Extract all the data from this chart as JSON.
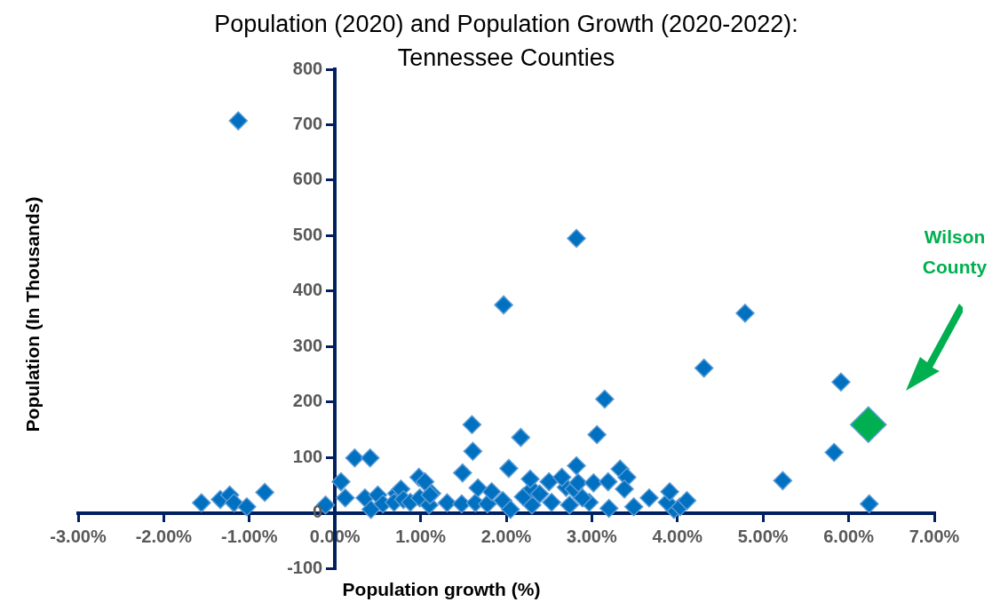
{
  "chart_data": {
    "type": "scatter",
    "title": "Population (2020) and Population Growth (2020-2022): Tennessee Counties",
    "xlabel": "Population growth (%)",
    "ylabel": "Population (In Thousands)",
    "xlim": [
      -3,
      7
    ],
    "xticks": [
      {
        "value": -3,
        "label": "-3.00%"
      },
      {
        "value": -2,
        "label": "-2.00%"
      },
      {
        "value": -1,
        "label": "-1.00%"
      },
      {
        "value": 0,
        "label": "0.00%"
      },
      {
        "value": 1,
        "label": "1.00%"
      },
      {
        "value": 2,
        "label": "2.00%"
      },
      {
        "value": 3,
        "label": "3.00%"
      },
      {
        "value": 4,
        "label": "4.00%"
      },
      {
        "value": 5,
        "label": "5.00%"
      },
      {
        "value": 6,
        "label": "6.00%"
      },
      {
        "value": 7,
        "label": "7.00%"
      }
    ],
    "ylim": [
      -100,
      800
    ],
    "yticks": [
      -100,
      0,
      100,
      200,
      300,
      400,
      500,
      600,
      700,
      800
    ],
    "grid": false,
    "legend": false,
    "marker": "diamond",
    "series": [
      {
        "color": "#0070c0",
        "x": [
          -1.13,
          -1.56,
          -1.34,
          -1.23,
          -1.18,
          -1.03,
          -0.82,
          -0.11,
          0.07,
          0.12,
          0.23,
          0.41,
          0.35,
          0.42,
          0.5,
          0.56,
          0.72,
          0.77,
          0.69,
          0.8,
          0.88,
          0.98,
          1.05,
          0.99,
          1.1,
          1.13,
          1.11,
          1.31,
          1.48,
          1.64,
          1.78,
          1.96,
          2.05,
          2.3,
          2.53,
          2.74,
          2.97,
          3.2,
          3.49,
          3.96,
          4.03,
          3.88,
          1.67,
          1.83,
          2.2,
          2.3,
          2.39,
          2.7,
          2.79,
          2.89,
          3.67,
          3.91,
          4.11,
          2.03,
          2.82,
          3.33,
          3.41,
          2.28,
          2.5,
          2.65,
          2.84,
          3.02,
          3.19,
          3.38,
          1.6,
          1.61,
          1.49,
          1.97,
          2.82,
          2.17,
          3.15,
          3.06,
          4.31,
          4.79,
          5.91,
          5.83,
          5.23,
          6.24
        ],
        "values": [
          707,
          18,
          24,
          32,
          18,
          11,
          37,
          14,
          56,
          27,
          99,
          99,
          27,
          6,
          32,
          16,
          35,
          43,
          19,
          24,
          19,
          64,
          56,
          27,
          14,
          35,
          32,
          18,
          16,
          18,
          16,
          22,
          6,
          14,
          19,
          14,
          19,
          8,
          11,
          6,
          11,
          19,
          45,
          38,
          29,
          43,
          34,
          46,
          43,
          27,
          27,
          38,
          22,
          80,
          85,
          79,
          64,
          61,
          56,
          64,
          54,
          54,
          56,
          43,
          159,
          111,
          72,
          375,
          495,
          136,
          205,
          141,
          261,
          360,
          236,
          109,
          58,
          16
        ]
      },
      {
        "name": "Wilson County",
        "color": "#00b050",
        "x": [
          6.23
        ],
        "values": [
          159
        ]
      }
    ]
  }
}
